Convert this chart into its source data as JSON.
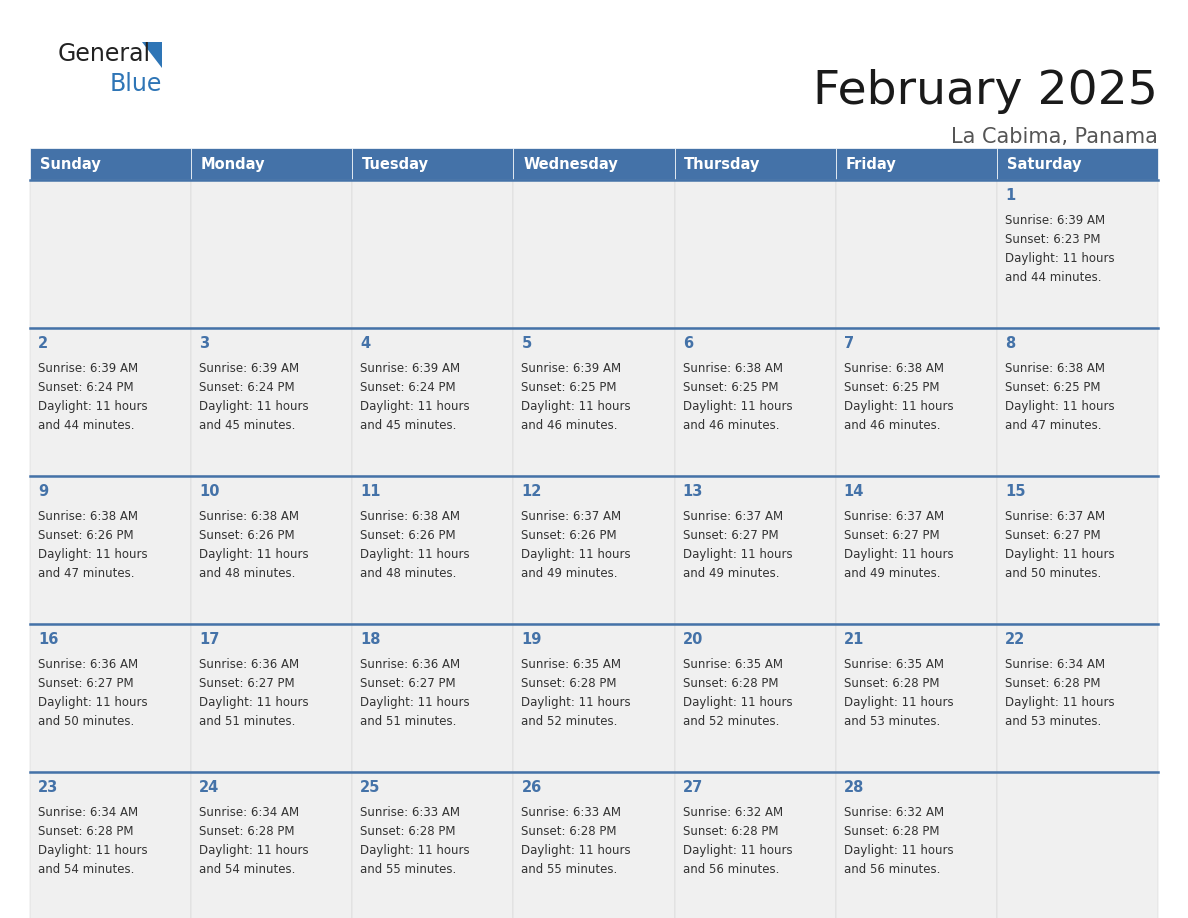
{
  "title": "February 2025",
  "subtitle": "La Cabima, Panama",
  "header_color": "#4472a8",
  "header_text_color": "#ffffff",
  "cell_bg_color": "#f0f0f0",
  "day_number_color": "#4472a8",
  "text_color": "#333333",
  "border_color": "#4472a8",
  "days_of_week": [
    "Sunday",
    "Monday",
    "Tuesday",
    "Wednesday",
    "Thursday",
    "Friday",
    "Saturday"
  ],
  "logo_general_color": "#222222",
  "logo_blue_color": "#2e75b6",
  "logo_triangle_color": "#2e75b6",
  "calendar_data": [
    [
      {
        "day": null,
        "sunrise": null,
        "sunset": null,
        "daylight": null
      },
      {
        "day": null,
        "sunrise": null,
        "sunset": null,
        "daylight": null
      },
      {
        "day": null,
        "sunrise": null,
        "sunset": null,
        "daylight": null
      },
      {
        "day": null,
        "sunrise": null,
        "sunset": null,
        "daylight": null
      },
      {
        "day": null,
        "sunrise": null,
        "sunset": null,
        "daylight": null
      },
      {
        "day": null,
        "sunrise": null,
        "sunset": null,
        "daylight": null
      },
      {
        "day": 1,
        "sunrise": "6:39 AM",
        "sunset": "6:23 PM",
        "daylight": "11 hours and 44 minutes."
      }
    ],
    [
      {
        "day": 2,
        "sunrise": "6:39 AM",
        "sunset": "6:24 PM",
        "daylight": "11 hours and 44 minutes."
      },
      {
        "day": 3,
        "sunrise": "6:39 AM",
        "sunset": "6:24 PM",
        "daylight": "11 hours and 45 minutes."
      },
      {
        "day": 4,
        "sunrise": "6:39 AM",
        "sunset": "6:24 PM",
        "daylight": "11 hours and 45 minutes."
      },
      {
        "day": 5,
        "sunrise": "6:39 AM",
        "sunset": "6:25 PM",
        "daylight": "11 hours and 46 minutes."
      },
      {
        "day": 6,
        "sunrise": "6:38 AM",
        "sunset": "6:25 PM",
        "daylight": "11 hours and 46 minutes."
      },
      {
        "day": 7,
        "sunrise": "6:38 AM",
        "sunset": "6:25 PM",
        "daylight": "11 hours and 46 minutes."
      },
      {
        "day": 8,
        "sunrise": "6:38 AM",
        "sunset": "6:25 PM",
        "daylight": "11 hours and 47 minutes."
      }
    ],
    [
      {
        "day": 9,
        "sunrise": "6:38 AM",
        "sunset": "6:26 PM",
        "daylight": "11 hours and 47 minutes."
      },
      {
        "day": 10,
        "sunrise": "6:38 AM",
        "sunset": "6:26 PM",
        "daylight": "11 hours and 48 minutes."
      },
      {
        "day": 11,
        "sunrise": "6:38 AM",
        "sunset": "6:26 PM",
        "daylight": "11 hours and 48 minutes."
      },
      {
        "day": 12,
        "sunrise": "6:37 AM",
        "sunset": "6:26 PM",
        "daylight": "11 hours and 49 minutes."
      },
      {
        "day": 13,
        "sunrise": "6:37 AM",
        "sunset": "6:27 PM",
        "daylight": "11 hours and 49 minutes."
      },
      {
        "day": 14,
        "sunrise": "6:37 AM",
        "sunset": "6:27 PM",
        "daylight": "11 hours and 49 minutes."
      },
      {
        "day": 15,
        "sunrise": "6:37 AM",
        "sunset": "6:27 PM",
        "daylight": "11 hours and 50 minutes."
      }
    ],
    [
      {
        "day": 16,
        "sunrise": "6:36 AM",
        "sunset": "6:27 PM",
        "daylight": "11 hours and 50 minutes."
      },
      {
        "day": 17,
        "sunrise": "6:36 AM",
        "sunset": "6:27 PM",
        "daylight": "11 hours and 51 minutes."
      },
      {
        "day": 18,
        "sunrise": "6:36 AM",
        "sunset": "6:27 PM",
        "daylight": "11 hours and 51 minutes."
      },
      {
        "day": 19,
        "sunrise": "6:35 AM",
        "sunset": "6:28 PM",
        "daylight": "11 hours and 52 minutes."
      },
      {
        "day": 20,
        "sunrise": "6:35 AM",
        "sunset": "6:28 PM",
        "daylight": "11 hours and 52 minutes."
      },
      {
        "day": 21,
        "sunrise": "6:35 AM",
        "sunset": "6:28 PM",
        "daylight": "11 hours and 53 minutes."
      },
      {
        "day": 22,
        "sunrise": "6:34 AM",
        "sunset": "6:28 PM",
        "daylight": "11 hours and 53 minutes."
      }
    ],
    [
      {
        "day": 23,
        "sunrise": "6:34 AM",
        "sunset": "6:28 PM",
        "daylight": "11 hours and 54 minutes."
      },
      {
        "day": 24,
        "sunrise": "6:34 AM",
        "sunset": "6:28 PM",
        "daylight": "11 hours and 54 minutes."
      },
      {
        "day": 25,
        "sunrise": "6:33 AM",
        "sunset": "6:28 PM",
        "daylight": "11 hours and 55 minutes."
      },
      {
        "day": 26,
        "sunrise": "6:33 AM",
        "sunset": "6:28 PM",
        "daylight": "11 hours and 55 minutes."
      },
      {
        "day": 27,
        "sunrise": "6:32 AM",
        "sunset": "6:28 PM",
        "daylight": "11 hours and 56 minutes."
      },
      {
        "day": 28,
        "sunrise": "6:32 AM",
        "sunset": "6:28 PM",
        "daylight": "11 hours and 56 minutes."
      },
      {
        "day": null,
        "sunrise": null,
        "sunset": null,
        "daylight": null
      }
    ]
  ]
}
